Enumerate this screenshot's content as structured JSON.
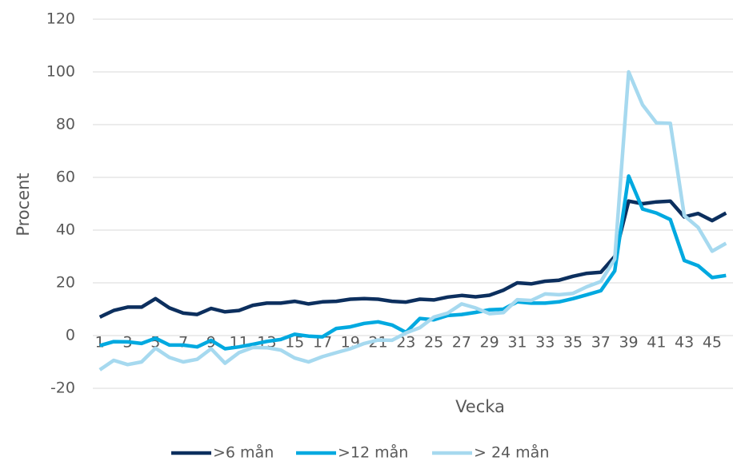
{
  "chart_data": {
    "type": "line",
    "x_label": "Vecka",
    "y_label": "Procent",
    "categories": [
      "1",
      null,
      "3",
      null,
      "5",
      null,
      "7",
      null,
      "9",
      null,
      "11",
      null,
      "13",
      null,
      "15",
      null,
      "17",
      null,
      "19",
      null,
      "21",
      null,
      "23",
      null,
      "25",
      null,
      "27",
      null,
      "29",
      null,
      "31",
      null,
      "33",
      null,
      "35",
      null,
      "37",
      null,
      "39",
      null,
      "41",
      null,
      "43",
      null,
      "45",
      null
    ],
    "series": [
      {
        "name": ">6 mån",
        "color": "#0c2f5e",
        "values": [
          7,
          9.5,
          10.8,
          10.8,
          14,
          10.5,
          8.5,
          8,
          10.3,
          9,
          9.5,
          11.5,
          12.3,
          12.3,
          13,
          12,
          12.8,
          13,
          13.8,
          14,
          13.8,
          13,
          12.7,
          13.8,
          13.5,
          14.6,
          15.2,
          14.7,
          15.3,
          17.2,
          20,
          19.6,
          20.6,
          21,
          22.5,
          23.6,
          24,
          30,
          51,
          50,
          50.7,
          51,
          45,
          46.3,
          43.6,
          46.5
        ]
      },
      {
        "name": ">12 mån",
        "color": "#00a9e0",
        "values": [
          -3.8,
          -2.3,
          -2.4,
          -3,
          -1,
          -3.6,
          -3.6,
          -4.3,
          -1.8,
          -5,
          -4.3,
          -3.3,
          -2.2,
          -1.5,
          0.5,
          -0.2,
          -0.5,
          2.7,
          3.3,
          4.6,
          5.2,
          4,
          1.2,
          6.5,
          6,
          7.6,
          8,
          8.8,
          9.8,
          10,
          12.8,
          12.3,
          12.3,
          12.8,
          14,
          15.5,
          17,
          24.5,
          60.5,
          48,
          46.5,
          44,
          28.5,
          26.5,
          22,
          22.8
        ]
      },
      {
        "name": "> 24 mån",
        "color": "#a6d9ef",
        "values": [
          -13,
          -9.4,
          -11,
          -10,
          -4.8,
          -8.3,
          -10,
          -9,
          -5,
          -10.5,
          -6.5,
          -4.5,
          -4.6,
          -5.5,
          -8.5,
          -10,
          -8,
          -6.5,
          -5,
          -3,
          -1.7,
          -1.8,
          1,
          3,
          7,
          8.5,
          12,
          10.5,
          8.3,
          8.7,
          13.6,
          13.3,
          15.8,
          15.5,
          16,
          18.5,
          20.5,
          29,
          100,
          87.5,
          80.7,
          80.5,
          45.5,
          41,
          32,
          35
        ]
      }
    ],
    "ylim": [
      -20,
      120
    ],
    "yticks": [
      -20,
      0,
      20,
      40,
      60,
      80,
      100,
      120
    ],
    "grid": true,
    "legend": "bottom"
  }
}
